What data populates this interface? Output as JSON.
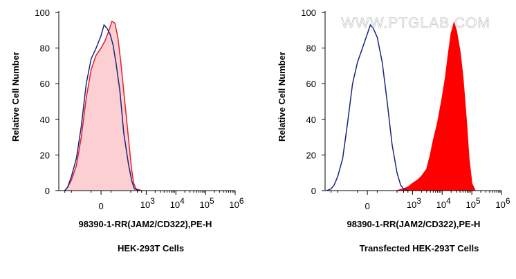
{
  "watermark": "WWW.PTGLAB.COM",
  "chart_data": [
    {
      "type": "area",
      "caption": "HEK-293T Cells",
      "xlabel": "98390-1-RR(JAM2/CD322),PE-H",
      "ylabel": "Relative Cell Number",
      "ylim": [
        0,
        100
      ],
      "y_ticks": [
        "0",
        "20",
        "40",
        "60",
        "80",
        "100"
      ],
      "x_scale": "biexponential",
      "x_ticks": [
        {
          "base": "0",
          "exp": ""
        },
        {
          "base": "10",
          "exp": "3"
        },
        {
          "base": "10",
          "exp": "4"
        },
        {
          "base": "10",
          "exp": "5"
        },
        {
          "base": "10",
          "exp": "6"
        }
      ],
      "grid": false,
      "legend": "none",
      "series": [
        {
          "role": "control",
          "style": "line",
          "color": "#1a237e",
          "x": [
            -500,
            -400,
            -300,
            -250,
            -200,
            -150,
            -100,
            -50,
            0,
            30,
            60,
            90,
            120,
            150,
            190,
            230,
            280,
            330,
            400,
            600
          ],
          "y": [
            0,
            2,
            8,
            18,
            36,
            60,
            74,
            80,
            87,
            93,
            91,
            88,
            82,
            72,
            56,
            32,
            14,
            5,
            1,
            0
          ]
        },
        {
          "role": "sample",
          "style": "filled",
          "color": "#e0202a",
          "fill": "#fccfd2",
          "x": [
            -500,
            -400,
            -300,
            -250,
            -200,
            -150,
            -100,
            -50,
            0,
            40,
            80,
            110,
            140,
            170,
            200,
            240,
            280,
            320,
            380,
            450,
            700
          ],
          "y": [
            0,
            2,
            6,
            14,
            30,
            52,
            68,
            76,
            80,
            84,
            90,
            95,
            94,
            86,
            72,
            50,
            28,
            12,
            4,
            1,
            0
          ]
        }
      ]
    },
    {
      "type": "area",
      "caption": "Transfected HEK-293T Cells",
      "xlabel": "98390-1-RR(JAM2/CD322),PE-H",
      "ylabel": "Relative Cell Number",
      "ylim": [
        0,
        100
      ],
      "y_ticks": [
        "0",
        "20",
        "40",
        "60",
        "80",
        "100"
      ],
      "x_scale": "biexponential",
      "x_ticks": [
        {
          "base": "0",
          "exp": ""
        },
        {
          "base": "10",
          "exp": "3"
        },
        {
          "base": "10",
          "exp": "4"
        },
        {
          "base": "10",
          "exp": "5"
        },
        {
          "base": "10",
          "exp": "6"
        }
      ],
      "grid": false,
      "legend": "none",
      "series": [
        {
          "role": "control",
          "style": "line",
          "color": "#1a237e",
          "x": [
            -700,
            -500,
            -400,
            -300,
            -250,
            -200,
            -150,
            -100,
            -50,
            0,
            30,
            60,
            100,
            150,
            200,
            250,
            300,
            400,
            500,
            700
          ],
          "y": [
            0,
            1,
            3,
            8,
            18,
            38,
            60,
            72,
            80,
            88,
            93,
            91,
            86,
            72,
            50,
            26,
            10,
            3,
            1,
            0
          ]
        },
        {
          "role": "sample",
          "style": "filled",
          "color": "#ff0000",
          "fill": "#ff0000",
          "x": [
            300,
            500,
            700,
            1000,
            1500,
            2000,
            3000,
            4000,
            5000,
            7000,
            10000,
            13000,
            16000,
            20000,
            25000,
            30000,
            40000,
            50000,
            65000,
            80000,
            100000,
            130000
          ],
          "y": [
            0,
            1,
            2,
            4,
            6,
            8,
            12,
            20,
            28,
            38,
            52,
            64,
            76,
            88,
            94,
            90,
            78,
            64,
            40,
            18,
            4,
            0
          ]
        }
      ]
    }
  ]
}
